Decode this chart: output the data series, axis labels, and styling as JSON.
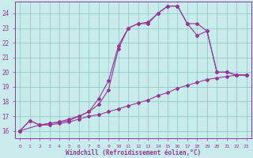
{
  "xlabel": "Windchill (Refroidissement éolien,°C)",
  "xlim": [
    -0.5,
    23.5
  ],
  "ylim": [
    15.5,
    24.8
  ],
  "yticks": [
    16,
    17,
    18,
    19,
    20,
    21,
    22,
    23,
    24
  ],
  "xticks": [
    0,
    1,
    2,
    3,
    4,
    5,
    6,
    7,
    8,
    9,
    10,
    11,
    12,
    13,
    14,
    15,
    16,
    17,
    18,
    19,
    20,
    21,
    22,
    23
  ],
  "bg_color": "#c8ecec",
  "line_color": "#993399",
  "grid_color": "#99cccc",
  "line1_x": [
    0,
    1,
    2,
    3,
    4,
    5,
    6,
    7,
    8,
    9,
    10,
    11,
    12,
    13,
    14,
    15,
    16,
    17,
    18,
    19,
    20,
    21,
    22,
    23
  ],
  "line1_y": [
    16.0,
    16.7,
    16.4,
    16.4,
    16.5,
    16.6,
    16.8,
    17.0,
    17.1,
    17.3,
    17.5,
    17.7,
    17.9,
    18.1,
    18.4,
    18.6,
    18.9,
    19.1,
    19.3,
    19.5,
    19.6,
    19.7,
    19.8,
    19.8
  ],
  "line2_x": [
    0,
    1,
    2,
    3,
    4,
    5,
    6,
    7,
    8,
    9,
    10,
    11,
    12,
    13,
    14,
    15,
    16,
    17,
    18,
    19,
    20,
    21,
    22,
    23
  ],
  "line2_y": [
    16.0,
    16.7,
    16.4,
    16.5,
    16.6,
    16.8,
    17.0,
    17.3,
    18.2,
    19.4,
    21.8,
    23.0,
    23.3,
    23.3,
    24.0,
    24.5,
    24.5,
    23.3,
    22.5,
    22.8,
    20.0,
    20.0,
    19.8,
    19.8
  ],
  "line3_x": [
    0,
    2,
    3,
    4,
    5,
    6,
    7,
    8,
    9,
    10,
    11,
    12,
    13,
    14,
    15,
    16,
    17,
    18,
    19,
    20,
    21,
    22,
    23
  ],
  "line3_y": [
    16.0,
    16.4,
    16.5,
    16.6,
    16.7,
    17.0,
    17.3,
    17.8,
    18.8,
    21.6,
    23.0,
    23.3,
    23.4,
    24.0,
    24.5,
    24.5,
    23.3,
    23.3,
    22.8,
    20.0,
    20.0,
    19.8,
    19.8
  ]
}
